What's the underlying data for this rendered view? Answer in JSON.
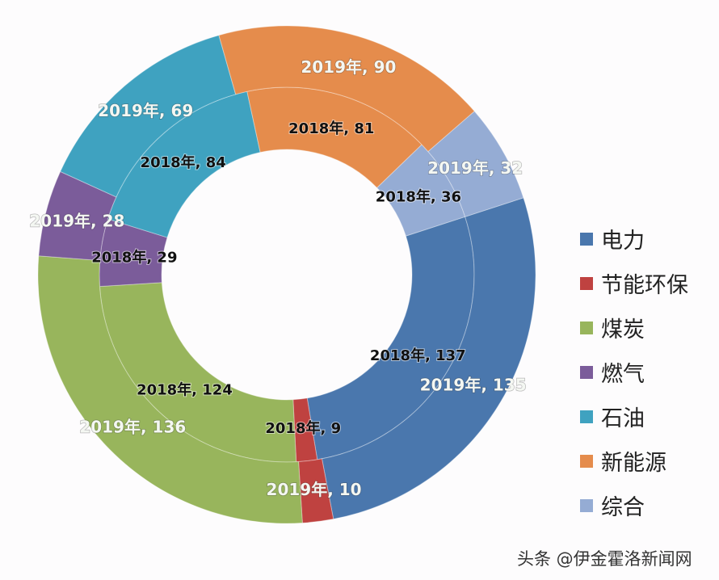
{
  "chart_data": {
    "type": "pie",
    "subtype": "double-donut",
    "categories": [
      "电力",
      "节能环保",
      "煤炭",
      "燃气",
      "石油",
      "新能源",
      "综合"
    ],
    "colors": [
      "#4a77ad",
      "#bf4240",
      "#98b55c",
      "#7b5c9a",
      "#3fa2c0",
      "#e58c4c",
      "#95acd4"
    ],
    "series": [
      {
        "name": "2018年",
        "ring": "inner",
        "values": [
          137,
          9,
          124,
          29,
          84,
          81,
          36
        ]
      },
      {
        "name": "2019年",
        "ring": "outer",
        "values": [
          135,
          10,
          136,
          28,
          69,
          90,
          32
        ]
      }
    ],
    "label_format": "{series}, {value}",
    "legend_position": "right"
  },
  "legend": {
    "items": [
      "电力",
      "节能环保",
      "煤炭",
      "燃气",
      "石油",
      "新能源",
      "综合"
    ]
  },
  "watermark": "头条 @伊金霍洛新闻网"
}
